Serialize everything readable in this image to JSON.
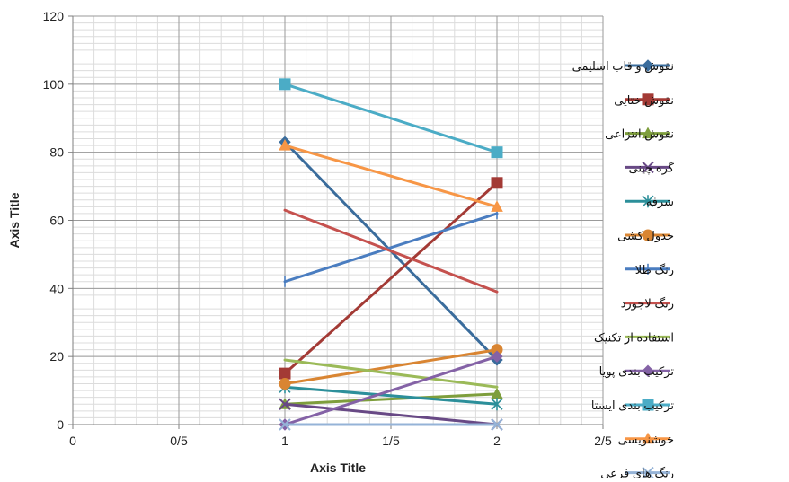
{
  "chart_data": {
    "type": "line",
    "title": "",
    "xlabel": "Axis Title",
    "ylabel": "Axis Title",
    "xlim": [
      0,
      2.5
    ],
    "ylim": [
      0,
      120
    ],
    "x_ticks": [
      0,
      0.5,
      1,
      1.5,
      2,
      2.5
    ],
    "x_tick_labels": [
      "0",
      "0/5",
      "1",
      "1/5",
      "2",
      "2/5"
    ],
    "y_ticks": [
      0,
      20,
      40,
      60,
      80,
      100,
      120
    ],
    "y_tick_labels": [
      "0",
      "20",
      "40",
      "60",
      "80",
      "100",
      "120"
    ],
    "grid": true,
    "legend_position": "right",
    "series": [
      {
        "name": "نقوش و قاب اسلیمی",
        "color": "#3A6C9C",
        "marker": "diamond",
        "x": [
          1,
          2
        ],
        "y": [
          83,
          19
        ]
      },
      {
        "name": "نقوش ختایی",
        "color": "#A33A35",
        "marker": "square",
        "x": [
          1,
          2
        ],
        "y": [
          15,
          71
        ]
      },
      {
        "name": "نقوش انتزاعی",
        "color": "#7E9E3C",
        "marker": "triangle",
        "x": [
          1,
          2
        ],
        "y": [
          6,
          9
        ]
      },
      {
        "name": "گره چینی",
        "color": "#684985",
        "marker": "x",
        "x": [
          1,
          2
        ],
        "y": [
          6,
          0
        ]
      },
      {
        "name": "شرفه",
        "color": "#2C8F9A",
        "marker": "star",
        "x": [
          1,
          2
        ],
        "y": [
          11,
          6
        ]
      },
      {
        "name": "جدول کشی",
        "color": "#D98532",
        "marker": "circle",
        "x": [
          1,
          2
        ],
        "y": [
          12,
          22
        ]
      },
      {
        "name": "رنگ طلا",
        "color": "#4A7DC0",
        "marker": "plus",
        "x": [
          1,
          2
        ],
        "y": [
          42,
          62
        ]
      },
      {
        "name": "رنگ لاجورد",
        "color": "#C5514E",
        "marker": "none",
        "x": [
          1,
          2
        ],
        "y": [
          63,
          39
        ]
      },
      {
        "name": "استفاده از تکنیک",
        "color": "#9BBA58",
        "marker": "none",
        "x": [
          1,
          2
        ],
        "y": [
          19,
          11
        ]
      },
      {
        "name": "ترکیب بندی پویا",
        "color": "#8462A6",
        "marker": "diamond",
        "x": [
          1,
          2
        ],
        "y": [
          0,
          20
        ]
      },
      {
        "name": "ترکیب بندی ایستا",
        "color": "#4BACC6",
        "marker": "square",
        "x": [
          1,
          2
        ],
        "y": [
          100,
          80
        ]
      },
      {
        "name": "خوشنویسی",
        "color": "#F79646",
        "marker": "triangle",
        "x": [
          1,
          2
        ],
        "y": [
          82,
          64
        ]
      },
      {
        "name": "رنگ های فرعی",
        "color": "#95B3D7",
        "marker": "x",
        "x": [
          1,
          2
        ],
        "y": [
          0,
          0
        ]
      }
    ]
  }
}
